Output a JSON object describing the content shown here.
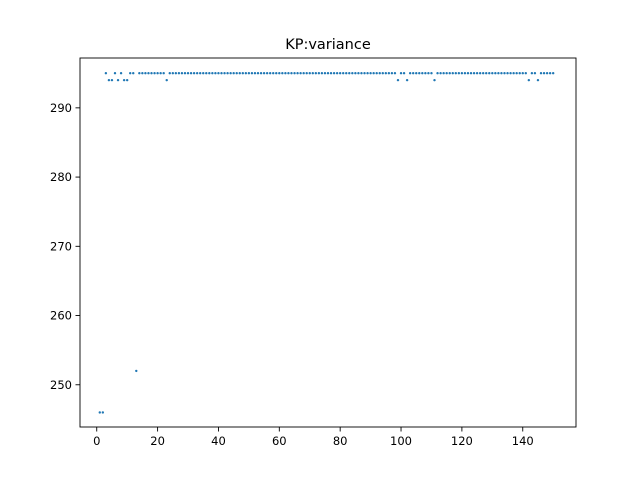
{
  "chart_data": {
    "type": "scatter",
    "title": "KP:variance",
    "xlabel": "",
    "ylabel": "",
    "xlim": [
      -5.5,
      157.5
    ],
    "ylim": [
      243.9,
      297.2
    ],
    "xticks": [
      0,
      20,
      40,
      60,
      80,
      100,
      120,
      140
    ],
    "yticks": [
      250,
      260,
      270,
      280,
      290
    ],
    "grid": false,
    "marker_color": "#1f77b4",
    "series": [
      {
        "x": [
          1,
          2,
          3,
          4,
          5,
          6,
          7,
          8,
          9,
          10,
          11,
          12,
          13,
          14,
          15,
          16,
          17,
          18,
          19,
          20,
          21,
          22,
          23,
          24,
          25,
          26,
          27,
          28,
          29,
          30,
          31,
          32,
          33,
          34,
          35,
          36,
          37,
          38,
          39,
          40,
          41,
          42,
          43,
          44,
          45,
          46,
          47,
          48,
          49,
          50,
          51,
          52,
          53,
          54,
          55,
          56,
          57,
          58,
          59,
          60,
          61,
          62,
          63,
          64,
          65,
          66,
          67,
          68,
          69,
          70,
          71,
          72,
          73,
          74,
          75,
          76,
          77,
          78,
          79,
          80,
          81,
          82,
          83,
          84,
          85,
          86,
          87,
          88,
          89,
          90,
          91,
          92,
          93,
          94,
          95,
          96,
          97,
          98,
          99,
          100,
          101,
          102,
          103,
          104,
          105,
          106,
          107,
          108,
          109,
          110,
          111,
          112,
          113,
          114,
          115,
          116,
          117,
          118,
          119,
          120,
          121,
          122,
          123,
          124,
          125,
          126,
          127,
          128,
          129,
          130,
          131,
          132,
          133,
          134,
          135,
          136,
          137,
          138,
          139,
          140,
          141,
          142,
          143,
          144,
          145,
          146,
          147,
          148,
          149,
          150
        ],
        "y": [
          246,
          246,
          295,
          294,
          294,
          295,
          294,
          295,
          294,
          294,
          295,
          295,
          252,
          295,
          295,
          295,
          295,
          295,
          295,
          295,
          295,
          295,
          294,
          295,
          295,
          295,
          295,
          295,
          295,
          295,
          295,
          295,
          295,
          295,
          295,
          295,
          295,
          295,
          295,
          295,
          295,
          295,
          295,
          295,
          295,
          295,
          295,
          295,
          295,
          295,
          295,
          295,
          295,
          295,
          295,
          295,
          295,
          295,
          295,
          295,
          295,
          295,
          295,
          295,
          295,
          295,
          295,
          295,
          295,
          295,
          295,
          295,
          295,
          295,
          295,
          295,
          295,
          295,
          295,
          295,
          295,
          295,
          295,
          295,
          295,
          295,
          295,
          295,
          295,
          295,
          295,
          295,
          295,
          295,
          295,
          295,
          295,
          295,
          294,
          295,
          295,
          294,
          295,
          295,
          295,
          295,
          295,
          295,
          295,
          295,
          294,
          295,
          295,
          295,
          295,
          295,
          295,
          295,
          295,
          295,
          295,
          295,
          295,
          295,
          295,
          295,
          295,
          295,
          295,
          295,
          295,
          295,
          295,
          295,
          295,
          295,
          295,
          295,
          295,
          295,
          295,
          294,
          295,
          295,
          294,
          295,
          295,
          295,
          295,
          295
        ]
      }
    ]
  }
}
